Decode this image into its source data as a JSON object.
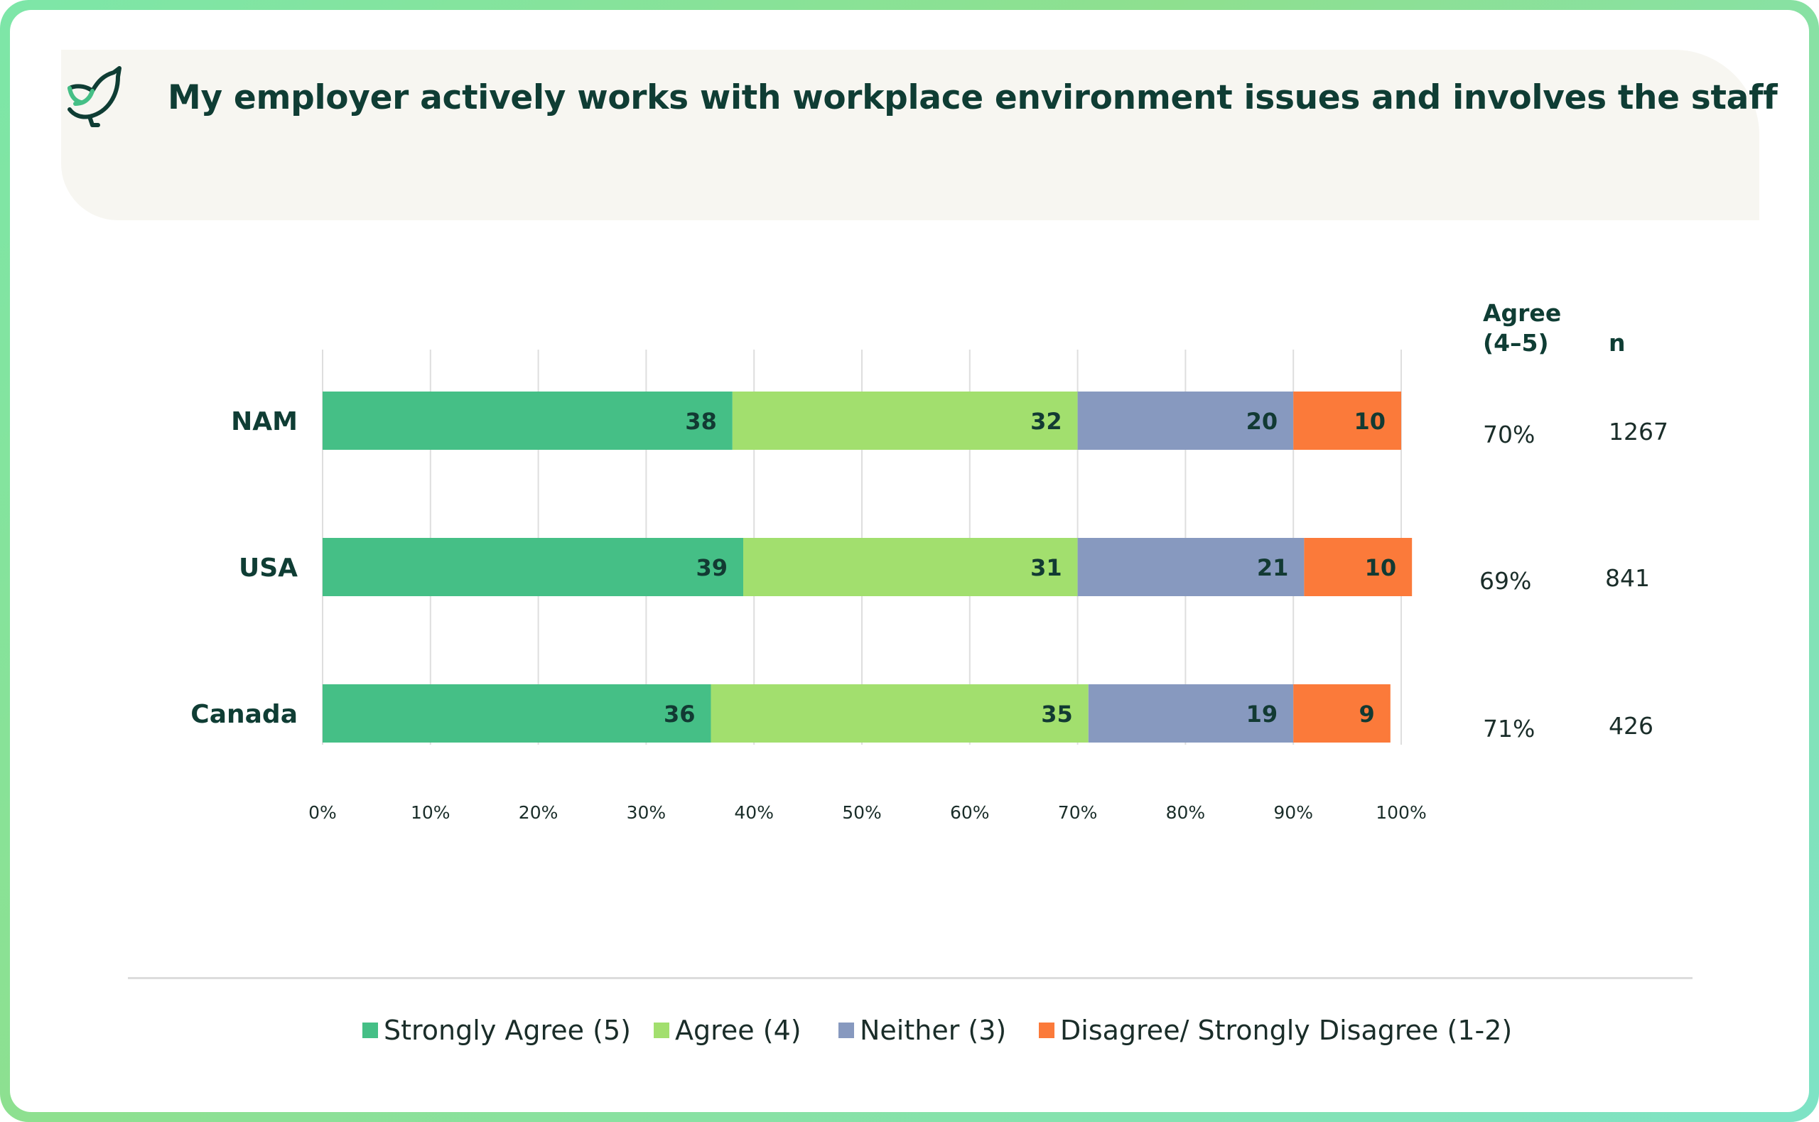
{
  "title": "My employer actively works with workplace environment issues and involves the staff",
  "colors": {
    "strongly_agree": "#45bf86",
    "agree": "#a2df6e",
    "neither": "#8799bf",
    "disagree": "#fb7a3a",
    "text": "#0f3d34"
  },
  "icons": {
    "logo": "bird-logo-icon"
  },
  "side_table": {
    "headers": {
      "agree_line1": "Agree",
      "agree_line2": "(4–5)",
      "n": "n"
    },
    "rows": [
      {
        "agree": "70%",
        "n": "1267"
      },
      {
        "agree": "69%",
        "n": "841"
      },
      {
        "agree": "71%",
        "n": "426"
      }
    ]
  },
  "chart_data": {
    "type": "bar",
    "orientation": "horizontal",
    "stacked": true,
    "categories": [
      "NAM",
      "USA",
      "Canada"
    ],
    "series": [
      {
        "name": "Strongly Agree (5)",
        "values": [
          38,
          39,
          36
        ]
      },
      {
        "name": "Agree (4)",
        "values": [
          32,
          31,
          35
        ]
      },
      {
        "name": "Neither (3)",
        "values": [
          20,
          21,
          19
        ]
      },
      {
        "name": "Disagree/ Strongly Disagree (1-2)",
        "values": [
          10,
          10,
          9
        ]
      }
    ],
    "xticks": [
      "0%",
      "10%",
      "20%",
      "30%",
      "40%",
      "50%",
      "60%",
      "70%",
      "80%",
      "90%",
      "100%"
    ],
    "xlim": [
      0,
      100
    ],
    "grid": true,
    "legend_position": "bottom"
  }
}
